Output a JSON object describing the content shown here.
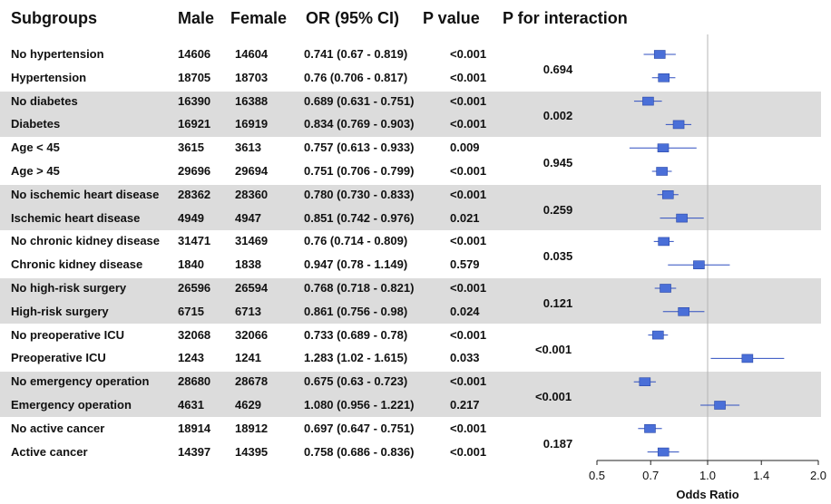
{
  "headers": {
    "subgroups": "Subgroups",
    "male": "Male",
    "female": "Female",
    "or": "OR (95% CI)",
    "p": "P value",
    "pint": "P for interaction"
  },
  "rows": [
    {
      "label": "No hypertension",
      "male": "14606",
      "female": "14604",
      "or_text": "0.741 (0.67  - 0.819)",
      "p": "<0.001"
    },
    {
      "label": "Hypertension",
      "male": "18705",
      "female": "18703",
      "or_text": "0.76  (0.706 - 0.817)",
      "p": "<0.001"
    },
    {
      "label": "No diabetes",
      "male": "16390",
      "female": "16388",
      "or_text": "0.689 (0.631 - 0.751)",
      "p": "<0.001"
    },
    {
      "label": "Diabetes",
      "male": "16921",
      "female": "16919",
      "or_text": "0.834 (0.769 - 0.903)",
      "p": "<0.001"
    },
    {
      "label": "Age < 45",
      "male": "3615",
      "female": "3613",
      "or_text": "0.757 (0.613 - 0.933)",
      "p": "0.009"
    },
    {
      "label": "Age > 45",
      "male": "29696",
      "female": "29694",
      "or_text": "0.751 (0.706 - 0.799)",
      "p": "<0.001"
    },
    {
      "label": "No ischemic heart disease",
      "male": "28362",
      "female": "28360",
      "or_text": "0.780 (0.730 - 0.833)",
      "p": "<0.001"
    },
    {
      "label": "Ischemic heart disease",
      "male": "4949",
      "female": "4947",
      "or_text": "0.851 (0.742 - 0.976)",
      "p": "0.021"
    },
    {
      "label": "No chronic kidney disease",
      "male": "31471",
      "female": "31469",
      "or_text": "0.76  (0.714 - 0.809)",
      "p": "<0.001"
    },
    {
      "label": "Chronic kidney disease",
      "male": "1840",
      "female": "1838",
      "or_text": "0.947 (0.78  - 1.149)",
      "p": "0.579"
    },
    {
      "label": "No high-risk surgery",
      "male": "26596",
      "female": "26594",
      "or_text": "0.768 (0.718 - 0.821)",
      "p": "<0.001"
    },
    {
      "label": "High-risk surgery",
      "male": "6715",
      "female": "6713",
      "or_text": "0.861 (0.756 - 0.98)",
      "p": "0.024"
    },
    {
      "label": "No preoperative ICU",
      "male": "32068",
      "female": "32066",
      "or_text": "0.733 (0.689 - 0.78)",
      "p": "<0.001"
    },
    {
      "label": "Preoperative ICU",
      "male": "1243",
      "female": "1241",
      "or_text": "1.283 (1.02  - 1.615)",
      "p": "0.033"
    },
    {
      "label": "No emergency operation",
      "male": "28680",
      "female": "28678",
      "or_text": "0.675 (0.63  - 0.723)",
      "p": "<0.001"
    },
    {
      "label": "Emergency operation",
      "male": "4631",
      "female": "4629",
      "or_text": "1.080 (0.956 - 1.221)",
      "p": "0.217"
    },
    {
      "label": "No active cancer",
      "male": "18914",
      "female": "18912",
      "or_text": "0.697 (0.647 - 0.751)",
      "p": "<0.001"
    },
    {
      "label": "Active cancer",
      "male": "14397",
      "female": "14395",
      "or_text": "0.758 (0.686 - 0.836)",
      "p": "<0.001"
    }
  ],
  "interactions": [
    "0.694",
    "0.002",
    "0.945",
    "0.259",
    "0.035",
    "0.121",
    "<0.001",
    "<0.001",
    "0.187"
  ],
  "chart_data": {
    "type": "forest",
    "xlabel": "Odds Ratio",
    "xlim": [
      0.5,
      2.0
    ],
    "ticks": [
      "0.5",
      "0.7",
      "1.0",
      "1.4",
      "2.0"
    ],
    "reference_line": 1.0,
    "log_scale": true,
    "categories": [
      "No hypertension",
      "Hypertension",
      "No diabetes",
      "Diabetes",
      "Age < 45",
      "Age > 45",
      "No ischemic heart disease",
      "Ischemic heart disease",
      "No chronic kidney disease",
      "Chronic kidney disease",
      "No high-risk surgery",
      "High-risk surgery",
      "No preoperative ICU",
      "Preoperative ICU",
      "No emergency operation",
      "Emergency operation",
      "No active cancer",
      "Active cancer"
    ],
    "or": [
      0.741,
      0.76,
      0.689,
      0.834,
      0.757,
      0.751,
      0.78,
      0.851,
      0.76,
      0.947,
      0.768,
      0.861,
      0.733,
      1.283,
      0.675,
      1.08,
      0.697,
      0.758
    ],
    "lower": [
      0.67,
      0.706,
      0.631,
      0.769,
      0.613,
      0.706,
      0.73,
      0.742,
      0.714,
      0.78,
      0.718,
      0.756,
      0.689,
      1.02,
      0.63,
      0.956,
      0.647,
      0.686
    ],
    "upper": [
      0.819,
      0.817,
      0.751,
      0.903,
      0.933,
      0.799,
      0.833,
      0.976,
      0.809,
      1.149,
      0.821,
      0.98,
      0.78,
      1.615,
      0.723,
      1.221,
      0.751,
      0.836
    ],
    "marker_color": "#4a6fd8",
    "line_color": "#2f4fc0",
    "band_color": "#dcdcdc"
  }
}
